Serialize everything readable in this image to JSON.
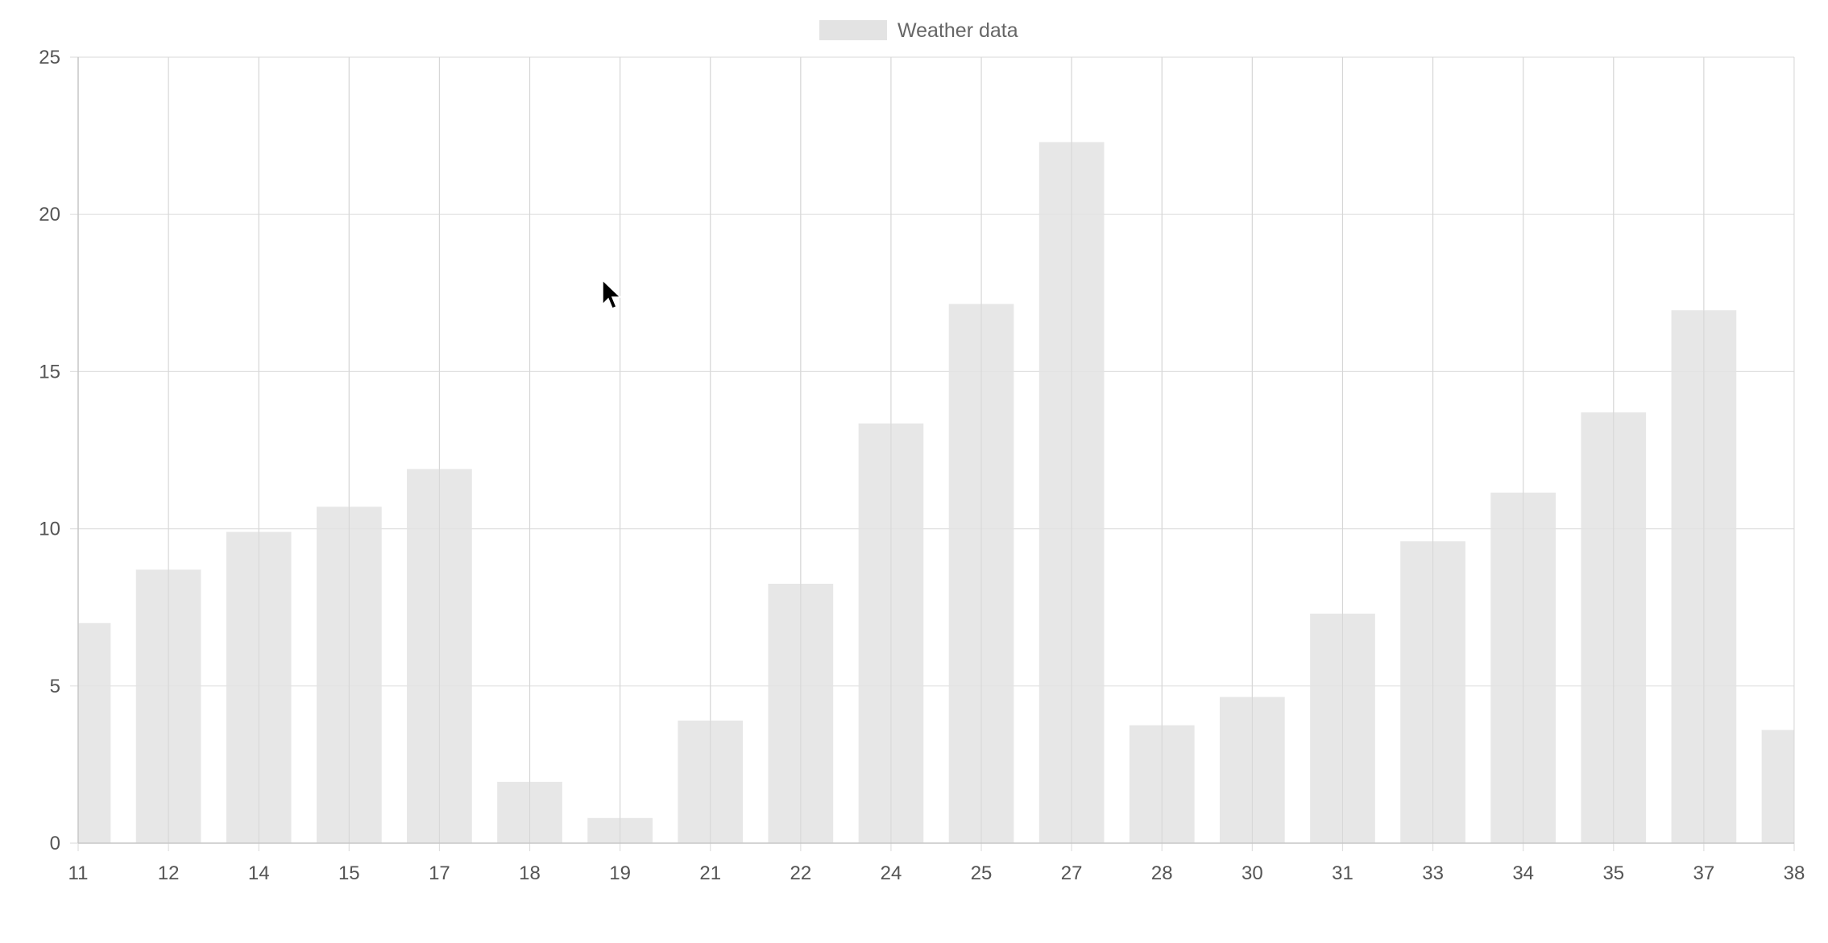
{
  "chart_data": {
    "type": "bar",
    "categories": [
      "11",
      "12",
      "14",
      "15",
      "17",
      "18",
      "19",
      "21",
      "22",
      "24",
      "25",
      "27",
      "28",
      "30",
      "31",
      "33",
      "34",
      "35",
      "37",
      "38"
    ],
    "series": [
      {
        "name": "Weather data",
        "values": [
          7.0,
          8.7,
          9.9,
          10.7,
          11.9,
          1.95,
          0.8,
          3.9,
          8.25,
          13.35,
          17.15,
          22.3,
          3.75,
          4.65,
          7.3,
          9.6,
          11.15,
          13.7,
          16.95,
          3.6
        ]
      }
    ],
    "ylim": [
      0,
      25
    ],
    "yticks": [
      0,
      5,
      10,
      15,
      20,
      25
    ],
    "grid": true,
    "legend": "top-center",
    "xlabel": "",
    "ylabel": "",
    "title": "",
    "colors": {
      "bar": "#e3e3e3",
      "grid": "#e0e0e0",
      "tick_text": "#555555",
      "legend_text": "#666666"
    }
  }
}
